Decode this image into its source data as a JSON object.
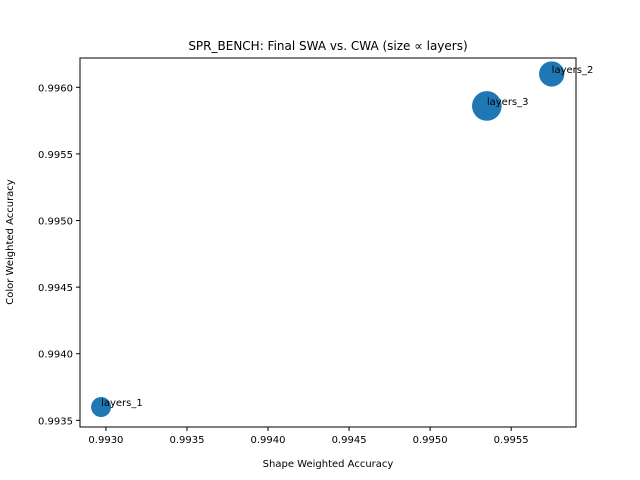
{
  "chart_data": {
    "type": "scatter",
    "title": "SPR_BENCH: Final SWA vs. CWA (size ∝ layers)",
    "xlabel": "Shape Weighted Accuracy",
    "ylabel": "Color Weighted Accuracy",
    "xlim": [
      0.99284,
      0.9959
    ],
    "ylim": [
      0.99345,
      0.99622
    ],
    "xticks": [
      "0.9930",
      "0.9935",
      "0.9940",
      "0.9945",
      "0.9950",
      "0.9955"
    ],
    "xtick_values": [
      0.993,
      0.9935,
      0.994,
      0.9945,
      0.995,
      0.9955
    ],
    "yticks": [
      "0.9935",
      "0.9940",
      "0.9945",
      "0.9950",
      "0.9955",
      "0.9960"
    ],
    "ytick_values": [
      0.9935,
      0.994,
      0.9945,
      0.995,
      0.9955,
      0.996
    ],
    "grid": false,
    "color": "#1f77b4",
    "points": [
      {
        "label": "layers_1",
        "layers": 1,
        "x": 0.99297,
        "y": 0.9936
      },
      {
        "label": "layers_2",
        "layers": 2,
        "x": 0.99575,
        "y": 0.9961
      },
      {
        "label": "layers_3",
        "layers": 3,
        "x": 0.99535,
        "y": 0.99586
      }
    ]
  }
}
